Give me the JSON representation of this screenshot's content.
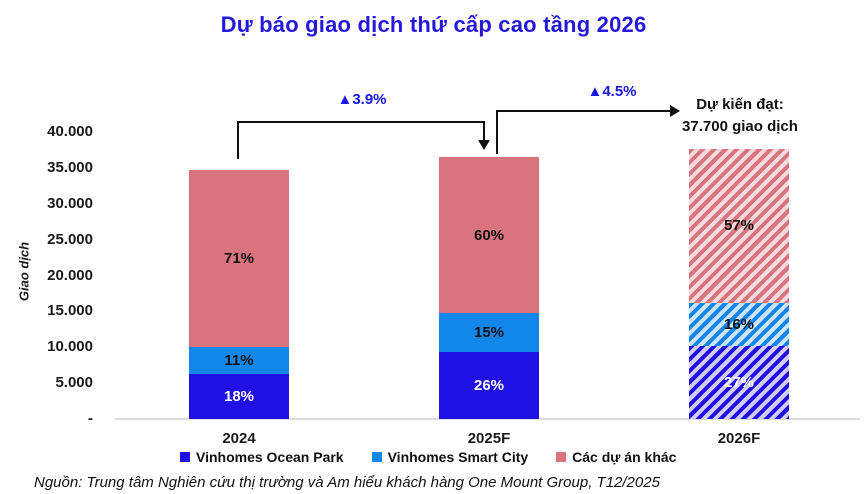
{
  "title": "Dự báo giao dịch thứ cấp cao tầng 2026",
  "chart_data": {
    "type": "bar",
    "stacked": true,
    "categories": [
      "2024",
      "2025F",
      "2026F"
    ],
    "totals": [
      34700,
      36100,
      37700
    ],
    "series": [
      {
        "name": "Vinhomes Ocean Park",
        "color": "#2010E6",
        "tint": "#d2ccf9",
        "pct": [
          18,
          26,
          27
        ],
        "label_color": "#ffffff"
      },
      {
        "name": "Vinhomes Smart City",
        "color": "#1286EA",
        "tint": "#cde4fb",
        "pct": [
          11,
          15,
          16
        ],
        "label_color": "#111111"
      },
      {
        "name": "Các dự án khác",
        "color": "#D9737E",
        "tint": "#f7dade",
        "pct": [
          71,
          60,
          57
        ],
        "label_color": "#111111"
      }
    ],
    "ylabel": "Giao dịch",
    "yticks": [
      "40.000",
      "35.000",
      "30.000",
      "25.000",
      "20.000",
      "15.000",
      "10.000",
      "5.000",
      "-"
    ],
    "ylim": [
      0,
      40000
    ],
    "hatched_category": "2026F",
    "legend_position": "bottom",
    "annotations": {
      "growth_2025": "▲3.9%",
      "growth_2026": "▲4.5%",
      "target": [
        "Dự kiến đạt:",
        "37.700 giao dịch"
      ]
    }
  },
  "source": "Nguồn:  Trung tâm Nghiên cứu thị trường và Am hiểu khách hàng One Mount Group, T12/2025"
}
